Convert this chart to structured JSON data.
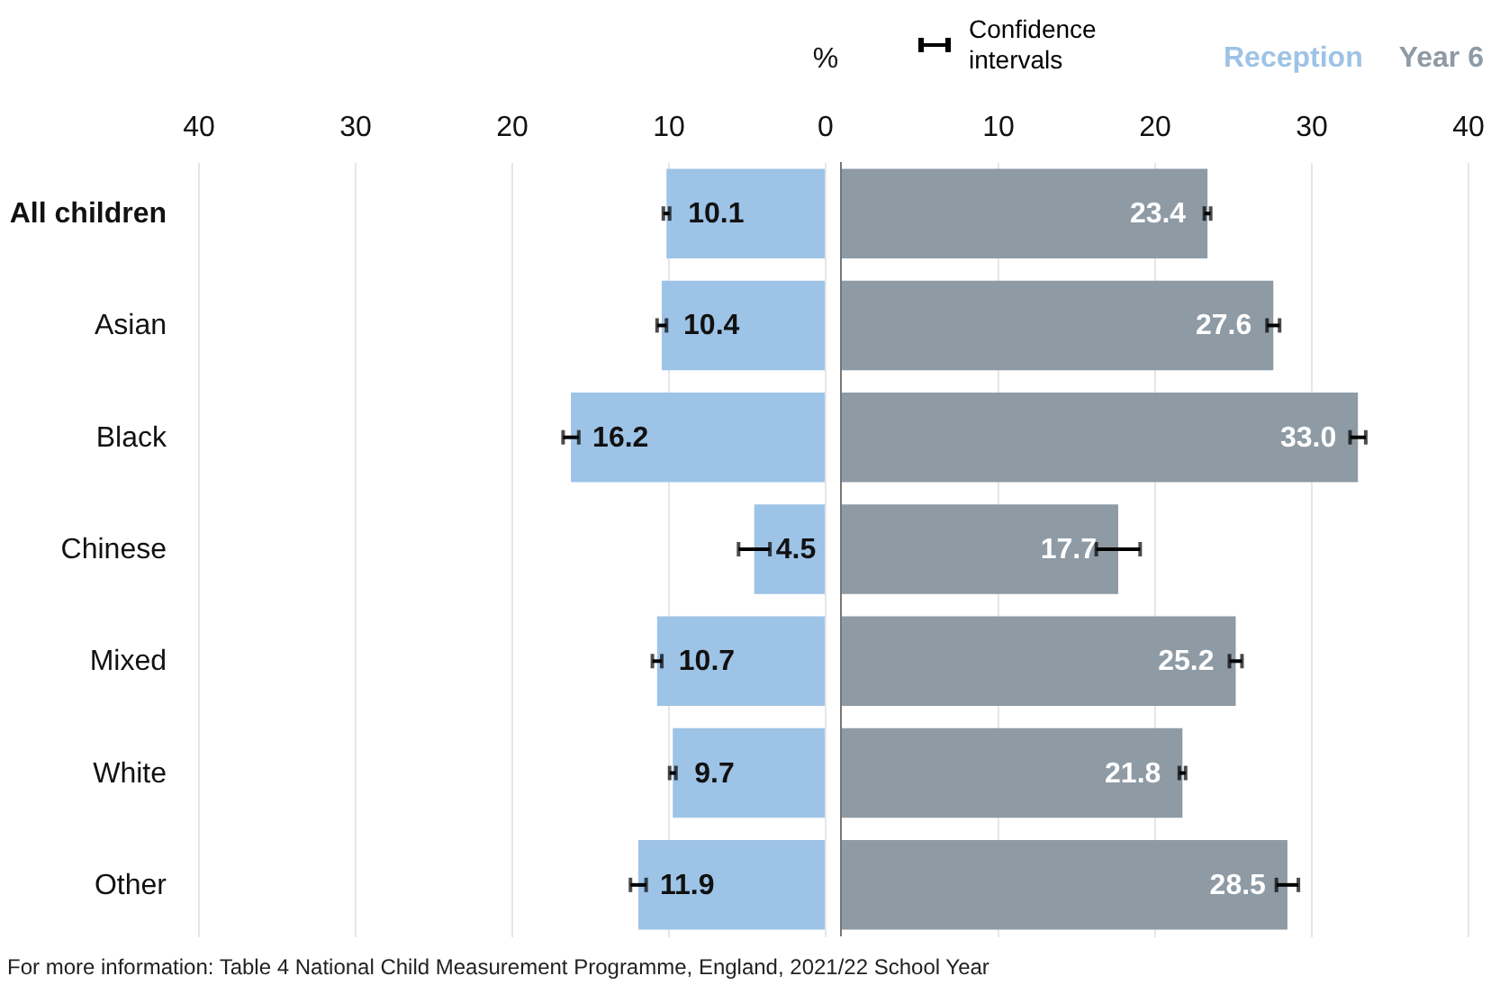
{
  "chart_data": [
    {
      "type": "bar",
      "orientation": "horizontal",
      "xlabel": "%",
      "categories": [
        "All children",
        "Asian",
        "Black",
        "Chinese",
        "Mixed",
        "White",
        "Other"
      ],
      "series": [
        {
          "name": "Reception",
          "color": "#9dc3e6",
          "values": [
            10.1,
            10.4,
            16.2,
            4.5,
            10.7,
            9.7,
            11.9
          ],
          "value_labels": [
            "10.1",
            "10.4",
            "16.2",
            "4.5",
            "10.7",
            "9.7",
            "11.9"
          ],
          "errors": [
            0.2,
            0.3,
            0.5,
            1.0,
            0.3,
            0.2,
            0.5
          ]
        }
      ],
      "xlim": [
        40,
        0
      ],
      "xticks": [
        40,
        30,
        20,
        10,
        0
      ],
      "grid": "x",
      "annotations": [
        "For more information: Table 4 National Child Measurement Programme, England, 2021/22 School Year"
      ]
    },
    {
      "type": "bar",
      "orientation": "horizontal",
      "categories": [
        null,
        null,
        null,
        null,
        null,
        null,
        null
      ],
      "series": [
        {
          "name": "Year 6",
          "color": "#8e9aa4",
          "values": [
            23.4,
            27.6,
            33.0,
            17.7,
            25.2,
            21.8,
            28.5
          ],
          "value_labels": [
            "23.4",
            "27.6",
            "33.0",
            "17.7",
            "25.2",
            "21.8",
            "28.5"
          ],
          "errors": [
            0.2,
            0.4,
            0.5,
            1.4,
            0.4,
            0.2,
            0.7
          ]
        }
      ],
      "xlim": [
        0,
        40
      ],
      "xticks": [
        10,
        20,
        30,
        40
      ],
      "grid": "x",
      "tick_labels": "x",
      "annotations": [
        "Confidence intervals"
      ]
    }
  ]
}
